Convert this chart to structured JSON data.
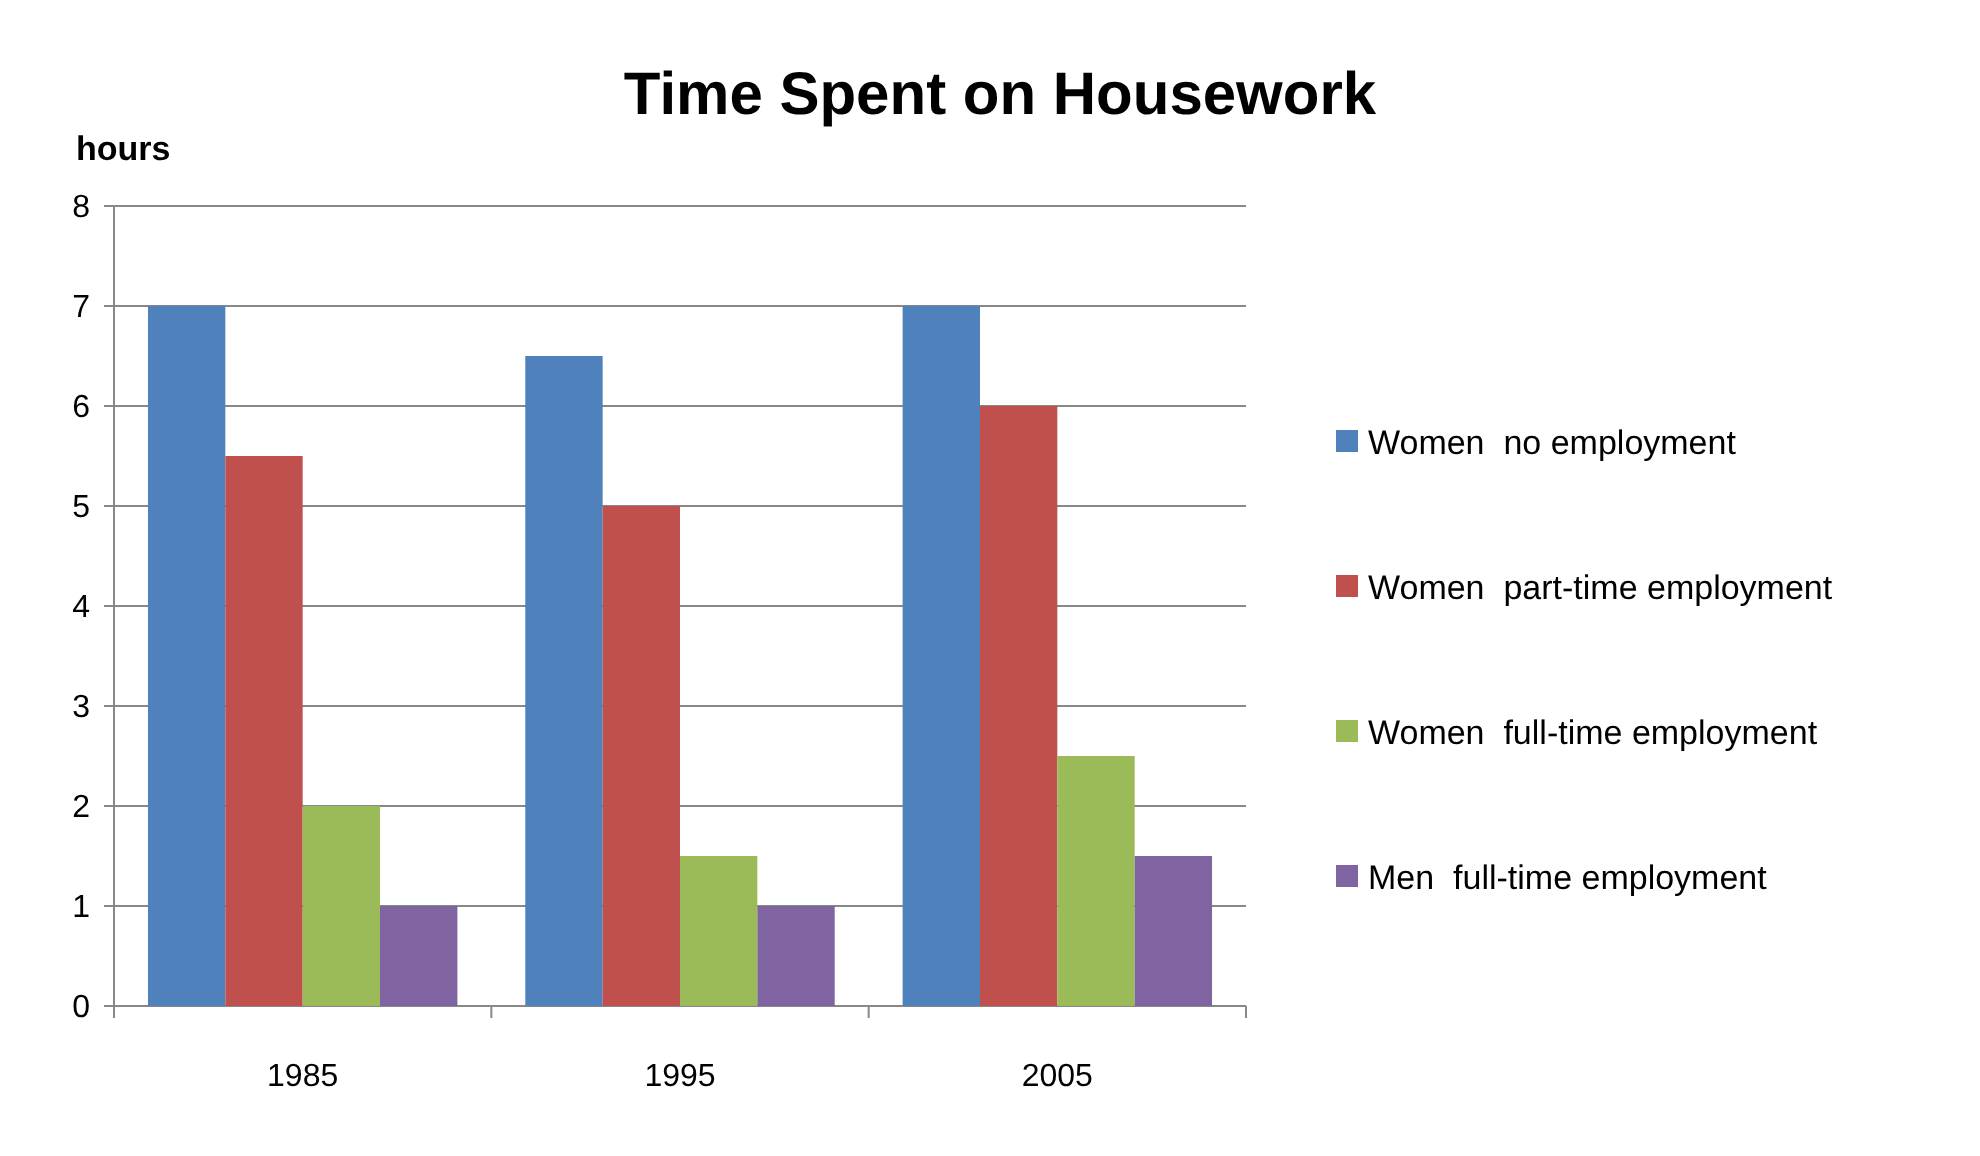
{
  "chart_data": {
    "type": "bar",
    "title": "Time Spent on Housework",
    "ylabel": "hours",
    "categories": [
      "1985",
      "1995",
      "2005"
    ],
    "series": [
      {
        "name": "Women  no employment",
        "color": "#4f81bd",
        "values": [
          7,
          6.5,
          7
        ]
      },
      {
        "name": "Women  part-time employment",
        "color": "#c0504d",
        "values": [
          5.5,
          5,
          6
        ]
      },
      {
        "name": "Women  full-time employment",
        "color": "#9bbb59",
        "values": [
          2,
          1.5,
          2.5
        ]
      },
      {
        "name": "Men  full-time employment",
        "color": "#8064a2",
        "values": [
          1,
          1,
          1.5
        ]
      }
    ],
    "ylim": [
      0,
      8
    ],
    "yticks": [
      0,
      1,
      2,
      3,
      4,
      5,
      6,
      7,
      8
    ],
    "grid": "y",
    "legend": "right"
  }
}
